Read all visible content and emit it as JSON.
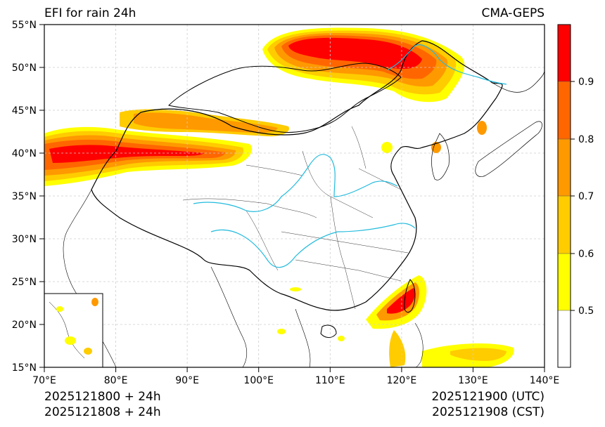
{
  "title": "EFI for rain 24h",
  "model": "CMA-GEPS",
  "footer": {
    "init_utc": "2025121800 + 24h",
    "init_cst": "2025121808 + 24h",
    "valid_utc": "2025121900 (UTC)",
    "valid_cst": "2025121908 (CST)"
  },
  "axes": {
    "lon_ticks": [
      "70°E",
      "80°E",
      "90°E",
      "100°E",
      "110°E",
      "120°E",
      "130°E",
      "140°E"
    ],
    "lat_ticks": [
      "15°N",
      "20°N",
      "25°N",
      "30°N",
      "35°N",
      "40°N",
      "45°N",
      "50°N",
      "55°N"
    ],
    "lon_range": [
      70,
      140
    ],
    "lat_range": [
      15,
      55
    ]
  },
  "colorbar": {
    "levels": [
      0.5,
      0.6,
      0.7,
      0.8,
      0.9
    ],
    "labels": [
      "0.5",
      "0.6",
      "0.7",
      "0.8",
      "0.9"
    ],
    "colors": [
      "#ffffff",
      "#ffff00",
      "#ffcc00",
      "#ff9900",
      "#ff6600",
      "#ff0000"
    ]
  },
  "colors": {
    "rivers": "#22bbdd",
    "borders": "#000000",
    "grid": "#cccccc"
  }
}
